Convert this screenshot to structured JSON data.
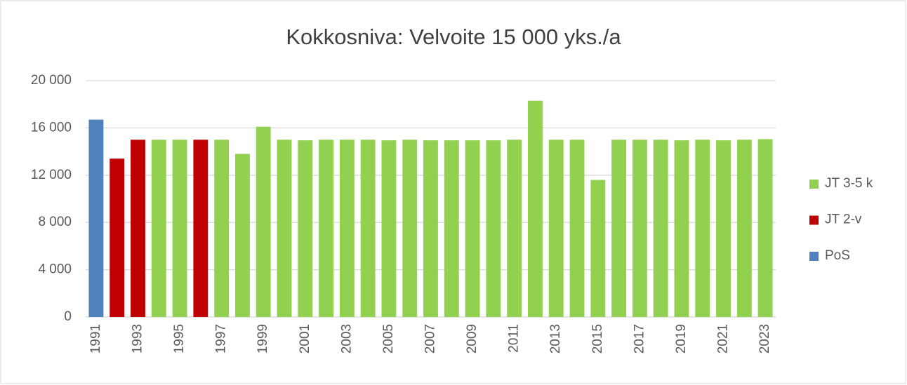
{
  "chart_data": {
    "type": "bar",
    "stacked": true,
    "title": "Kokkosniva: Velvoite 15 000 yks./a",
    "categories": [
      "1991",
      null,
      "1993",
      null,
      "1995",
      null,
      "1997",
      null,
      "1999",
      null,
      "2001",
      null,
      "2003",
      null,
      "2005",
      null,
      "2007",
      null,
      "2009",
      null,
      "2011",
      null,
      "2013",
      null,
      "2015",
      null,
      "2017",
      null,
      "2019",
      null,
      "2021",
      null,
      "2023"
    ],
    "series": [
      {
        "name": "JT 3-5 k",
        "color": "#92d050",
        "values": [
          null,
          null,
          null,
          15000,
          15000,
          null,
          15000,
          13800,
          16100,
          15000,
          14950,
          15000,
          15000,
          15000,
          14950,
          15000,
          14950,
          14950,
          14950,
          14950,
          15000,
          18300,
          15000,
          15000,
          11600,
          15000,
          15000,
          15000,
          14950,
          15000,
          14950,
          15000,
          15050
        ]
      },
      {
        "name": "JT 2-v",
        "color": "#c00000",
        "values": [
          null,
          13400,
          15000,
          null,
          null,
          15000,
          null,
          null,
          null,
          null,
          null,
          null,
          null,
          null,
          null,
          null,
          null,
          null,
          null,
          null,
          null,
          null,
          null,
          null,
          null,
          null,
          null,
          null,
          null,
          null,
          null,
          null,
          null
        ]
      },
      {
        "name": "PoS",
        "color": "#4f81bd",
        "values": [
          16700,
          null,
          null,
          null,
          null,
          null,
          null,
          null,
          null,
          null,
          null,
          null,
          null,
          null,
          null,
          null,
          null,
          null,
          null,
          null,
          null,
          null,
          null,
          null,
          null,
          null,
          null,
          null,
          null,
          null,
          null,
          null,
          null
        ]
      }
    ],
    "ylim": [
      0,
      20000
    ],
    "yticks": [
      0,
      {
        "value": 4000,
        "label": "4 000"
      },
      {
        "value": 8000,
        "label": "8 000"
      },
      {
        "value": 12000,
        "label": "12 000"
      },
      {
        "value": 16000,
        "label": "16 000"
      },
      {
        "value": 20000,
        "label": "20 000"
      }
    ],
    "grid": true,
    "legend": "right"
  }
}
